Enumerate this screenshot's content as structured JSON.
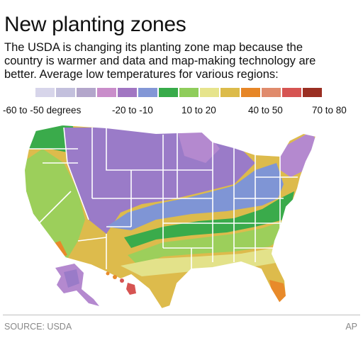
{
  "header": {
    "title": "New planting zones",
    "subtitle_lines": [
      "The USDA is changing its planting zone map because the",
      "country is warmer and data and map-making technology are",
      "better. Average low temperatures for various regions:"
    ]
  },
  "legend": {
    "colors": [
      "#d7d5ea",
      "#c3c0dd",
      "#b3a6cb",
      "#c98dca",
      "#a176c2",
      "#8397d6",
      "#38ab4a",
      "#8fcd5b",
      "#e6e48c",
      "#dcbb4a",
      "#e68627",
      "#e08b6c",
      "#d65452",
      "#9a2f22"
    ],
    "tick_labels": [
      "-60 to -50 degrees",
      "-20 to -10",
      "10 to 20",
      "40 to 50",
      "70 to 80"
    ]
  },
  "map_colors": {
    "purple": "#9a7bc8",
    "lavender": "#b489cf",
    "blue": "#7f95d5",
    "green": "#3aab4b",
    "lightgreen": "#9ccf5b",
    "yellow": "#e3e28a",
    "gold": "#ddbb4c",
    "orange": "#e88a2a",
    "red": "#d65452",
    "border": "#ffffff"
  },
  "footer": {
    "source": "SOURCE: USDA",
    "credit": "AP"
  }
}
